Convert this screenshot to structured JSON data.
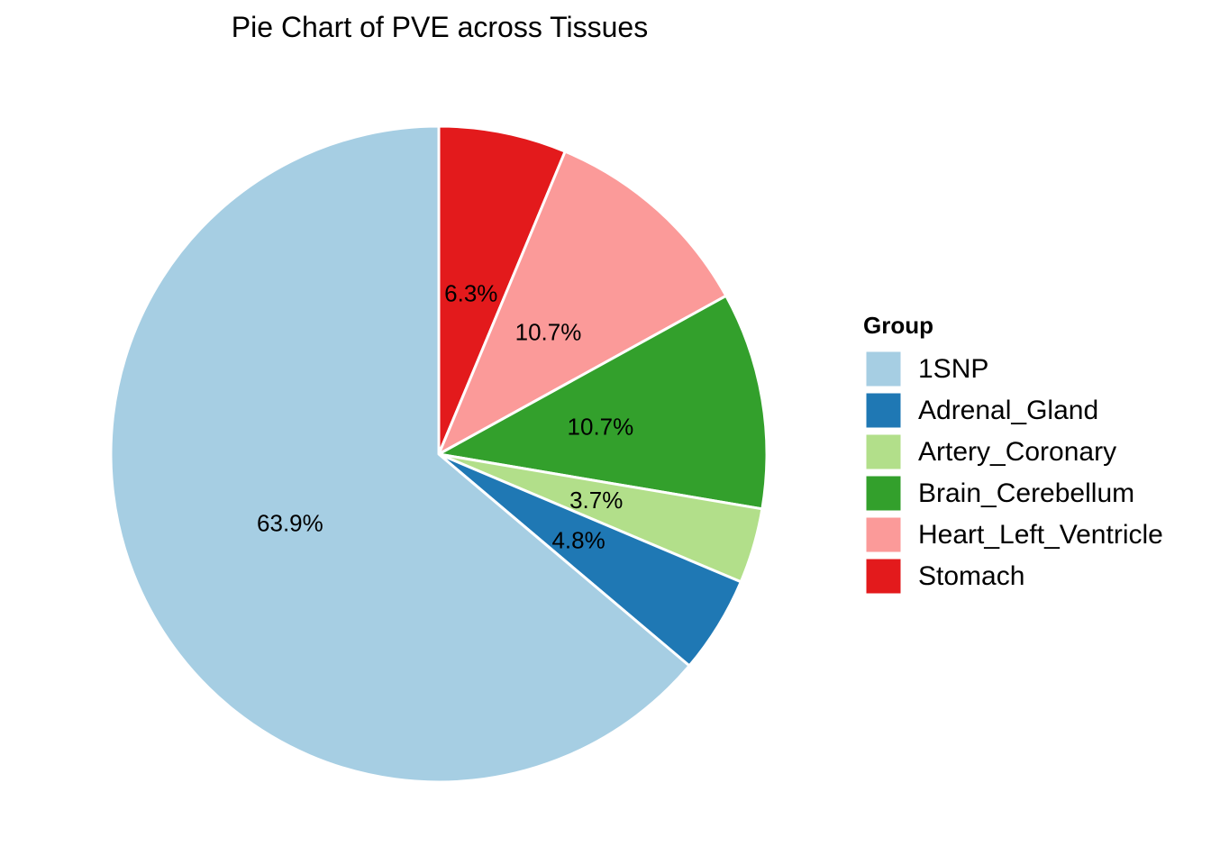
{
  "chart_data": {
    "type": "pie",
    "title": "Pie Chart of PVE across Tissues",
    "legend_title": "Group",
    "legend_position": "right",
    "direction": "clockwise",
    "start": "top",
    "categories": [
      "1SNP",
      "Adrenal_Gland",
      "Artery_Coronary",
      "Brain_Cerebellum",
      "Heart_Left_Ventricle",
      "Stomach"
    ],
    "values": [
      63.9,
      4.8,
      3.7,
      10.7,
      10.7,
      6.3
    ],
    "labels": [
      "63.9%",
      "4.8%",
      "3.7%",
      "10.7%",
      "10.7%",
      "6.3%"
    ],
    "colors": [
      "#a6cee3",
      "#1f78b4",
      "#b2df8a",
      "#33a02c",
      "#fb9a99",
      "#e31a1c"
    ],
    "slice_order_from_top_clockwise": [
      "Stomach",
      "Heart_Left_Ventricle",
      "Brain_Cerebellum",
      "Artery_Coronary",
      "Adrenal_Gland",
      "1SNP"
    ]
  }
}
